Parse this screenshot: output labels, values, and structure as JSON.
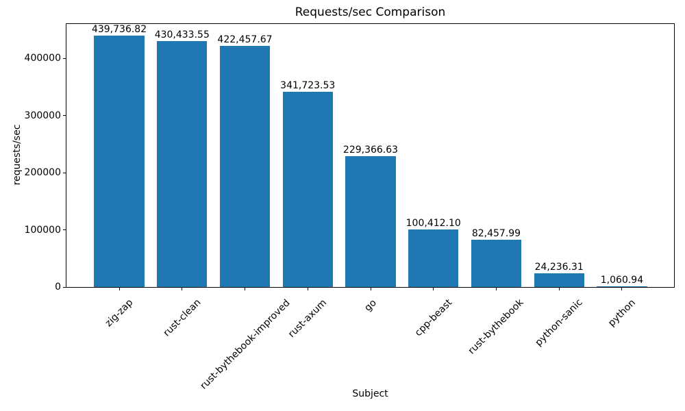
{
  "chart_data": {
    "type": "bar",
    "title": "Requests/sec Comparison",
    "xlabel": "Subject",
    "ylabel": "requests/sec",
    "categories": [
      "zig-zap",
      "rust-clean",
      "rust-bythebook-improved",
      "rust-axum",
      "go",
      "cpp-beast",
      "rust-bythebook",
      "python-sanic",
      "python"
    ],
    "values": [
      439736.82,
      430433.55,
      422457.67,
      341723.53,
      229366.63,
      100412.1,
      82457.99,
      24236.31,
      1060.94
    ],
    "bar_labels": [
      "439,736.82",
      "430,433.55",
      "422,457.67",
      "341,723.53",
      "229,366.63",
      "100,412.10",
      "82,457.99",
      "24,236.31",
      "1,060.94"
    ],
    "yticks": [
      0,
      100000,
      200000,
      300000,
      400000
    ],
    "ytick_labels": [
      "0",
      "100000",
      "200000",
      "300000",
      "400000"
    ],
    "ylim": [
      0,
      461723.66
    ],
    "xlim": [
      -0.84,
      8.84
    ],
    "bar_width": 0.8,
    "bar_color": "#1f77b4",
    "grid": false,
    "legend": "none",
    "xtick_rotation": 45
  }
}
